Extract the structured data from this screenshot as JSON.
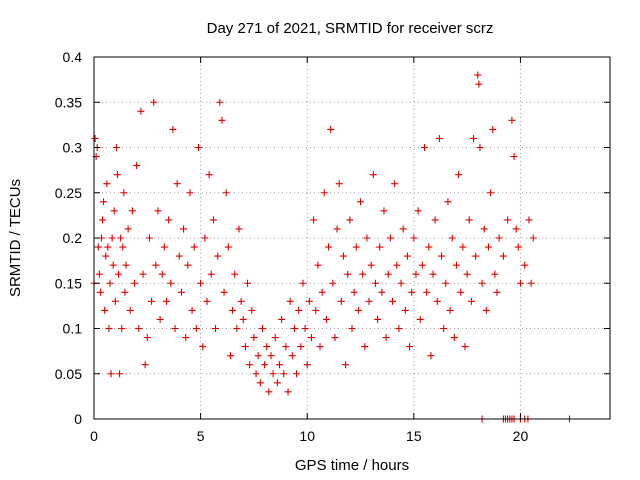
{
  "chart_data": {
    "type": "scatter",
    "title": "Day 271 of 2021, SRMTID for receiver scrz",
    "xlabel": "GPS time / hours",
    "ylabel": "SRMTID / TECUs",
    "xlim": [
      0,
      24.2
    ],
    "ylim": [
      0,
      0.4
    ],
    "x_ticks": [
      0,
      5,
      10,
      15,
      20
    ],
    "x_tick_labels": [
      "0",
      "5",
      "10",
      "15",
      "20"
    ],
    "y_ticks": [
      0,
      0.05,
      0.1,
      0.15,
      0.2,
      0.25,
      0.3,
      0.35,
      0.4
    ],
    "y_tick_labels": [
      "0",
      "0.05",
      "0.1",
      "0.15",
      "0.2",
      "0.25",
      "0.3",
      "0.35",
      "0.4"
    ],
    "grid": true,
    "marker": "plus",
    "color": "#e00000",
    "series": [
      {
        "points": [
          [
            0.0,
            0.15
          ],
          [
            0.05,
            0.31
          ],
          [
            0.1,
            0.29
          ],
          [
            0.15,
            0.3
          ],
          [
            0.2,
            0.19
          ],
          [
            0.25,
            0.16
          ],
          [
            0.3,
            0.14
          ],
          [
            0.35,
            0.2
          ],
          [
            0.4,
            0.22
          ],
          [
            0.45,
            0.24
          ],
          [
            0.5,
            0.12
          ],
          [
            0.55,
            0.18
          ],
          [
            0.6,
            0.26
          ],
          [
            0.65,
            0.19
          ],
          [
            0.7,
            0.1
          ],
          [
            0.75,
            0.15
          ],
          [
            0.8,
            0.05
          ],
          [
            0.85,
            0.2
          ],
          [
            0.9,
            0.17
          ],
          [
            0.95,
            0.23
          ],
          [
            1.0,
            0.13
          ],
          [
            1.05,
            0.3
          ],
          [
            1.1,
            0.27
          ],
          [
            1.15,
            0.16
          ],
          [
            1.2,
            0.05
          ],
          [
            1.25,
            0.2
          ],
          [
            1.3,
            0.1
          ],
          [
            1.35,
            0.19
          ],
          [
            1.4,
            0.25
          ],
          [
            1.45,
            0.14
          ],
          [
            1.5,
            0.17
          ],
          [
            1.6,
            0.21
          ],
          [
            1.7,
            0.12
          ],
          [
            1.8,
            0.23
          ],
          [
            1.9,
            0.15
          ],
          [
            2.0,
            0.28
          ],
          [
            2.1,
            0.1
          ],
          [
            2.2,
            0.34
          ],
          [
            2.3,
            0.16
          ],
          [
            2.4,
            0.06
          ],
          [
            2.5,
            0.09
          ],
          [
            2.6,
            0.2
          ],
          [
            2.7,
            0.13
          ],
          [
            2.8,
            0.35
          ],
          [
            2.9,
            0.17
          ],
          [
            3.0,
            0.23
          ],
          [
            3.1,
            0.11
          ],
          [
            3.2,
            0.16
          ],
          [
            3.3,
            0.19
          ],
          [
            3.4,
            0.13
          ],
          [
            3.5,
            0.22
          ],
          [
            3.6,
            0.15
          ],
          [
            3.7,
            0.32
          ],
          [
            3.8,
            0.1
          ],
          [
            3.9,
            0.26
          ],
          [
            4.0,
            0.18
          ],
          [
            4.1,
            0.14
          ],
          [
            4.2,
            0.21
          ],
          [
            4.3,
            0.09
          ],
          [
            4.4,
            0.17
          ],
          [
            4.5,
            0.25
          ],
          [
            4.6,
            0.12
          ],
          [
            4.7,
            0.19
          ],
          [
            4.8,
            0.1
          ],
          [
            4.9,
            0.3
          ],
          [
            5.0,
            0.15
          ],
          [
            5.1,
            0.08
          ],
          [
            5.2,
            0.2
          ],
          [
            5.3,
            0.13
          ],
          [
            5.4,
            0.27
          ],
          [
            5.5,
            0.16
          ],
          [
            5.6,
            0.22
          ],
          [
            5.7,
            0.1
          ],
          [
            5.8,
            0.18
          ],
          [
            5.9,
            0.35
          ],
          [
            6.0,
            0.33
          ],
          [
            6.1,
            0.14
          ],
          [
            6.2,
            0.25
          ],
          [
            6.3,
            0.19
          ],
          [
            6.4,
            0.07
          ],
          [
            6.5,
            0.12
          ],
          [
            6.6,
            0.16
          ],
          [
            6.7,
            0.1
          ],
          [
            6.8,
            0.21
          ],
          [
            6.9,
            0.13
          ],
          [
            7.0,
            0.11
          ],
          [
            7.1,
            0.08
          ],
          [
            7.2,
            0.15
          ],
          [
            7.3,
            0.06
          ],
          [
            7.4,
            0.12
          ],
          [
            7.5,
            0.09
          ],
          [
            7.6,
            0.05
          ],
          [
            7.7,
            0.07
          ],
          [
            7.8,
            0.04
          ],
          [
            7.9,
            0.1
          ],
          [
            8.0,
            0.06
          ],
          [
            8.1,
            0.08
          ],
          [
            8.2,
            0.03
          ],
          [
            8.3,
            0.07
          ],
          [
            8.4,
            0.05
          ],
          [
            8.5,
            0.09
          ],
          [
            8.6,
            0.04
          ],
          [
            8.7,
            0.06
          ],
          [
            8.8,
            0.11
          ],
          [
            8.9,
            0.05
          ],
          [
            9.0,
            0.08
          ],
          [
            9.1,
            0.03
          ],
          [
            9.2,
            0.13
          ],
          [
            9.3,
            0.07
          ],
          [
            9.4,
            0.1
          ],
          [
            9.5,
            0.05
          ],
          [
            9.6,
            0.12
          ],
          [
            9.7,
            0.08
          ],
          [
            9.8,
            0.15
          ],
          [
            9.9,
            0.1
          ],
          [
            10.0,
            0.06
          ],
          [
            10.1,
            0.13
          ],
          [
            10.2,
            0.09
          ],
          [
            10.3,
            0.22
          ],
          [
            10.4,
            0.12
          ],
          [
            10.5,
            0.17
          ],
          [
            10.6,
            0.08
          ],
          [
            10.7,
            0.14
          ],
          [
            10.8,
            0.25
          ],
          [
            10.9,
            0.11
          ],
          [
            11.0,
            0.19
          ],
          [
            11.1,
            0.32
          ],
          [
            11.2,
            0.15
          ],
          [
            11.3,
            0.09
          ],
          [
            11.4,
            0.21
          ],
          [
            11.5,
            0.26
          ],
          [
            11.6,
            0.13
          ],
          [
            11.7,
            0.18
          ],
          [
            11.8,
            0.06
          ],
          [
            11.9,
            0.16
          ],
          [
            12.0,
            0.22
          ],
          [
            12.1,
            0.1
          ],
          [
            12.2,
            0.14
          ],
          [
            12.3,
            0.19
          ],
          [
            12.4,
            0.12
          ],
          [
            12.5,
            0.24
          ],
          [
            12.6,
            0.16
          ],
          [
            12.7,
            0.08
          ],
          [
            12.8,
            0.2
          ],
          [
            12.9,
            0.13
          ],
          [
            13.0,
            0.17
          ],
          [
            13.1,
            0.27
          ],
          [
            13.2,
            0.15
          ],
          [
            13.3,
            0.11
          ],
          [
            13.4,
            0.19
          ],
          [
            13.5,
            0.14
          ],
          [
            13.6,
            0.23
          ],
          [
            13.7,
            0.09
          ],
          [
            13.8,
            0.16
          ],
          [
            13.9,
            0.2
          ],
          [
            14.0,
            0.13
          ],
          [
            14.1,
            0.26
          ],
          [
            14.2,
            0.17
          ],
          [
            14.3,
            0.1
          ],
          [
            14.4,
            0.15
          ],
          [
            14.5,
            0.21
          ],
          [
            14.6,
            0.12
          ],
          [
            14.7,
            0.18
          ],
          [
            14.8,
            0.08
          ],
          [
            14.9,
            0.14
          ],
          [
            15.0,
            0.2
          ],
          [
            15.1,
            0.16
          ],
          [
            15.2,
            0.23
          ],
          [
            15.3,
            0.11
          ],
          [
            15.4,
            0.17
          ],
          [
            15.5,
            0.3
          ],
          [
            15.6,
            0.14
          ],
          [
            15.7,
            0.19
          ],
          [
            15.8,
            0.07
          ],
          [
            15.9,
            0.16
          ],
          [
            16.0,
            0.22
          ],
          [
            16.1,
            0.13
          ],
          [
            16.2,
            0.31
          ],
          [
            16.3,
            0.18
          ],
          [
            16.4,
            0.1
          ],
          [
            16.5,
            0.15
          ],
          [
            16.6,
            0.24
          ],
          [
            16.7,
            0.12
          ],
          [
            16.8,
            0.2
          ],
          [
            16.9,
            0.09
          ],
          [
            17.0,
            0.17
          ],
          [
            17.1,
            0.27
          ],
          [
            17.2,
            0.14
          ],
          [
            17.3,
            0.19
          ],
          [
            17.4,
            0.08
          ],
          [
            17.5,
            0.16
          ],
          [
            17.6,
            0.22
          ],
          [
            17.7,
            0.13
          ],
          [
            17.8,
            0.31
          ],
          [
            17.9,
            0.18
          ],
          [
            18.0,
            0.38
          ],
          [
            18.05,
            0.37
          ],
          [
            18.1,
            0.3
          ],
          [
            18.2,
            0.15
          ],
          [
            18.3,
            0.21
          ],
          [
            18.4,
            0.12
          ],
          [
            18.5,
            0.19
          ],
          [
            18.6,
            0.25
          ],
          [
            18.7,
            0.32
          ],
          [
            18.8,
            0.16
          ],
          [
            18.9,
            0.14
          ],
          [
            19.0,
            0.2
          ],
          [
            19.2,
            0.18
          ],
          [
            19.4,
            0.22
          ],
          [
            19.6,
            0.33
          ],
          [
            19.7,
            0.29
          ],
          [
            19.8,
            0.21
          ],
          [
            19.9,
            0.19
          ],
          [
            20.0,
            0.15
          ],
          [
            20.2,
            0.17
          ],
          [
            20.4,
            0.22
          ],
          [
            20.5,
            0.15
          ],
          [
            20.6,
            0.2
          ],
          [
            18.2,
            0.0
          ],
          [
            19.2,
            0.0
          ],
          [
            19.3,
            0.0
          ],
          [
            19.4,
            0.0
          ],
          [
            19.5,
            0.0
          ],
          [
            19.6,
            0.0
          ],
          [
            19.7,
            0.0
          ],
          [
            20.0,
            0.0
          ],
          [
            20.2,
            0.0
          ],
          [
            20.35,
            0.0
          ],
          [
            22.3,
            0.0
          ]
        ]
      }
    ]
  }
}
